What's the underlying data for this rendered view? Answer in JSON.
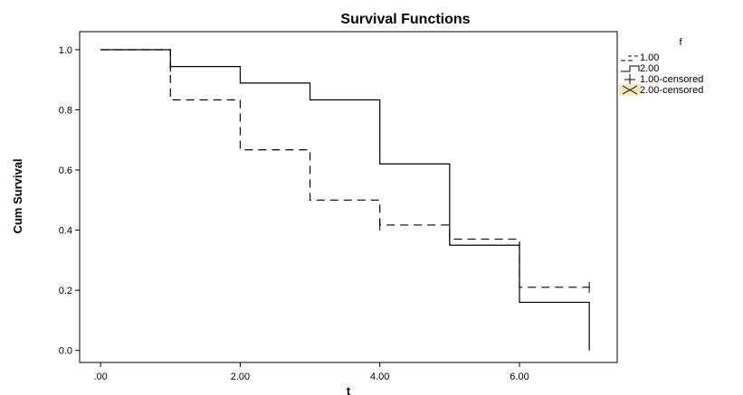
{
  "chart_data": {
    "type": "line",
    "subtype": "step",
    "title": "Survival Functions",
    "xlabel": "t",
    "ylabel": "Cum Survival",
    "xlim": [
      -0.3,
      7.4
    ],
    "ylim": [
      -0.04,
      1.06
    ],
    "xticks": [
      0,
      2,
      4,
      6
    ],
    "xtick_labels": [
      ".00",
      "2.00",
      "4.00",
      "6.00"
    ],
    "yticks": [
      0,
      0.2,
      0.4,
      0.6,
      0.8,
      1.0
    ],
    "ytick_labels": [
      "0.0",
      "0.2",
      "0.4",
      "0.6",
      "0.8",
      "1.0"
    ],
    "grid": false,
    "legend_title": "f",
    "legend_position": "right",
    "series": [
      {
        "name": "1.00",
        "style": "dashed",
        "x": [
          0,
          1,
          2,
          3,
          4,
          5,
          6,
          7
        ],
        "y": [
          1.0,
          0.833,
          0.667,
          0.5,
          0.417,
          0.37,
          0.21,
          0.21
        ],
        "censored": [
          [
            4,
            0.417
          ],
          [
            5,
            0.37
          ],
          [
            6,
            0.21
          ],
          [
            7,
            0.21
          ]
        ]
      },
      {
        "name": "2.00",
        "style": "solid",
        "x": [
          0,
          1,
          2,
          3,
          4,
          5,
          6,
          7
        ],
        "y": [
          1.0,
          0.944,
          0.889,
          0.833,
          0.62,
          0.35,
          0.16,
          0.0
        ],
        "censored": [
          [
            1,
            0.944
          ]
        ]
      }
    ],
    "legend_entries": [
      {
        "label": "1.00",
        "marker": "dashed-step"
      },
      {
        "label": "2.00",
        "marker": "solid-step"
      },
      {
        "label": "1.00-censored",
        "marker": "plus"
      },
      {
        "label": "2.00-censored",
        "marker": "cross"
      }
    ],
    "colors": {
      "line": "#000000",
      "highlight": "#f8e6b8"
    }
  }
}
